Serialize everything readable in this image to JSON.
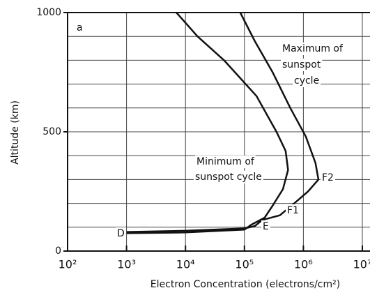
{
  "chart_data": {
    "type": "line",
    "xlabel": "Electron Concentration (electrons/cm²)",
    "ylabel": "Altitude (km)",
    "xscale": "log",
    "xlim": [
      100,
      10000000
    ],
    "xticks": [
      {
        "value": 100,
        "label": "10²"
      },
      {
        "value": 1000,
        "label": "10³"
      },
      {
        "value": 10000,
        "label": "10⁴"
      },
      {
        "value": 100000,
        "label": "10⁵"
      },
      {
        "value": 1000000,
        "label": "10⁶"
      },
      {
        "value": 10000000,
        "label": "10⁷"
      }
    ],
    "ylim": [
      0,
      1000
    ],
    "yticks": [
      0,
      500,
      1000
    ],
    "yminorticks": [
      100,
      200,
      300,
      400,
      600,
      700,
      800,
      900
    ],
    "grid": true,
    "annotations": [
      "a",
      "Maximum of",
      "sunspot",
      "cycle",
      "Minimum of",
      "sunspot cycle",
      "F2",
      "F1",
      "E",
      "D"
    ],
    "series": [
      {
        "color": "#111111",
        "x": [
          1000,
          10000,
          100000,
          130000,
          220000,
          300000,
          450000,
          550000,
          500000,
          350000,
          160000,
          45000,
          16000,
          7000
        ],
        "values": [
          75,
          78,
          90,
          110,
          140,
          190,
          260,
          340,
          420,
          500,
          650,
          800,
          900,
          1000
        ]
      },
      {
        "color": "#111111",
        "x": [
          1000,
          10000,
          100000,
          150000,
          200000,
          400000,
          700000,
          1200000,
          1800000,
          1600000,
          1100000,
          600000,
          300000,
          150000,
          85000
        ],
        "values": [
          80,
          85,
          95,
          105,
          130,
          150,
          200,
          250,
          300,
          370,
          480,
          600,
          750,
          880,
          1000
        ]
      }
    ]
  }
}
